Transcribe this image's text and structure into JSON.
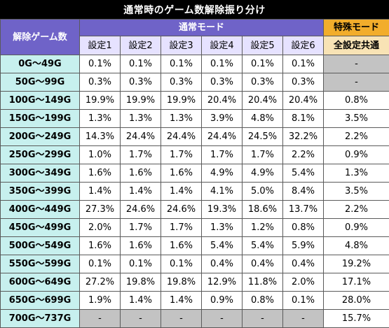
{
  "title": "通常時のゲーム数解除振り分け",
  "headers": {
    "count": "解除ゲーム数",
    "normal_mode": "通常モード",
    "special_mode": "特殊モード",
    "settings": [
      "設定1",
      "設定2",
      "設定3",
      "設定4",
      "設定5",
      "設定6"
    ],
    "common": "全設定共通"
  },
  "rows": [
    {
      "label": "0G～49G",
      "values": [
        "0.1%",
        "0.1%",
        "0.1%",
        "0.1%",
        "0.1%",
        "0.1%"
      ],
      "special": "-"
    },
    {
      "label": "50G～99G",
      "values": [
        "0.3%",
        "0.3%",
        "0.3%",
        "0.3%",
        "0.3%",
        "0.3%"
      ],
      "special": "-"
    },
    {
      "label": "100G～149G",
      "values": [
        "19.9%",
        "19.9%",
        "19.9%",
        "20.4%",
        "20.4%",
        "20.4%"
      ],
      "special": "0.8%"
    },
    {
      "label": "150G～199G",
      "values": [
        "1.3%",
        "1.3%",
        "1.3%",
        "3.9%",
        "4.8%",
        "8.1%"
      ],
      "special": "3.5%"
    },
    {
      "label": "200G～249G",
      "values": [
        "14.3%",
        "24.4%",
        "24.4%",
        "24.4%",
        "24.5%",
        "32.2%"
      ],
      "special": "2.2%"
    },
    {
      "label": "250G～299G",
      "values": [
        "1.0%",
        "1.7%",
        "1.7%",
        "1.7%",
        "1.7%",
        "2.2%"
      ],
      "special": "0.9%"
    },
    {
      "label": "300G～349G",
      "values": [
        "1.6%",
        "1.6%",
        "1.6%",
        "4.9%",
        "4.9%",
        "5.4%"
      ],
      "special": "1.3%"
    },
    {
      "label": "350G～399G",
      "values": [
        "1.4%",
        "1.4%",
        "1.4%",
        "4.1%",
        "5.0%",
        "8.4%"
      ],
      "special": "3.5%"
    },
    {
      "label": "400G～449G",
      "values": [
        "27.3%",
        "24.6%",
        "24.6%",
        "19.3%",
        "18.6%",
        "13.7%"
      ],
      "special": "2.2%"
    },
    {
      "label": "450G～499G",
      "values": [
        "2.0%",
        "1.7%",
        "1.7%",
        "1.3%",
        "1.2%",
        "0.8%"
      ],
      "special": "0.9%"
    },
    {
      "label": "500G～549G",
      "values": [
        "1.6%",
        "1.6%",
        "1.6%",
        "5.4%",
        "5.4%",
        "5.9%"
      ],
      "special": "4.8%"
    },
    {
      "label": "550G～599G",
      "values": [
        "0.1%",
        "0.1%",
        "0.1%",
        "0.4%",
        "0.4%",
        "0.4%"
      ],
      "special": "19.2%"
    },
    {
      "label": "600G～649G",
      "values": [
        "27.2%",
        "19.8%",
        "19.8%",
        "12.9%",
        "11.8%",
        "2.0%"
      ],
      "special": "17.1%"
    },
    {
      "label": "650G～699G",
      "values": [
        "1.9%",
        "1.4%",
        "1.4%",
        "0.9%",
        "0.8%",
        "0.1%"
      ],
      "special": "28.0%"
    },
    {
      "label": "700G～737G",
      "values": [
        "-",
        "-",
        "-",
        "-",
        "-",
        "-"
      ],
      "special": "15.7%"
    }
  ],
  "colors": {
    "title_bg": "#000000",
    "header_purple": "#6f63c8",
    "setting_header_bg": "#e6e2ff",
    "special_header_bg": "#f2ad2b",
    "common_header_bg": "#f8e3b5",
    "row_label_bg": "#c7f0ee",
    "empty_cell_bg": "#c3c3c3"
  }
}
